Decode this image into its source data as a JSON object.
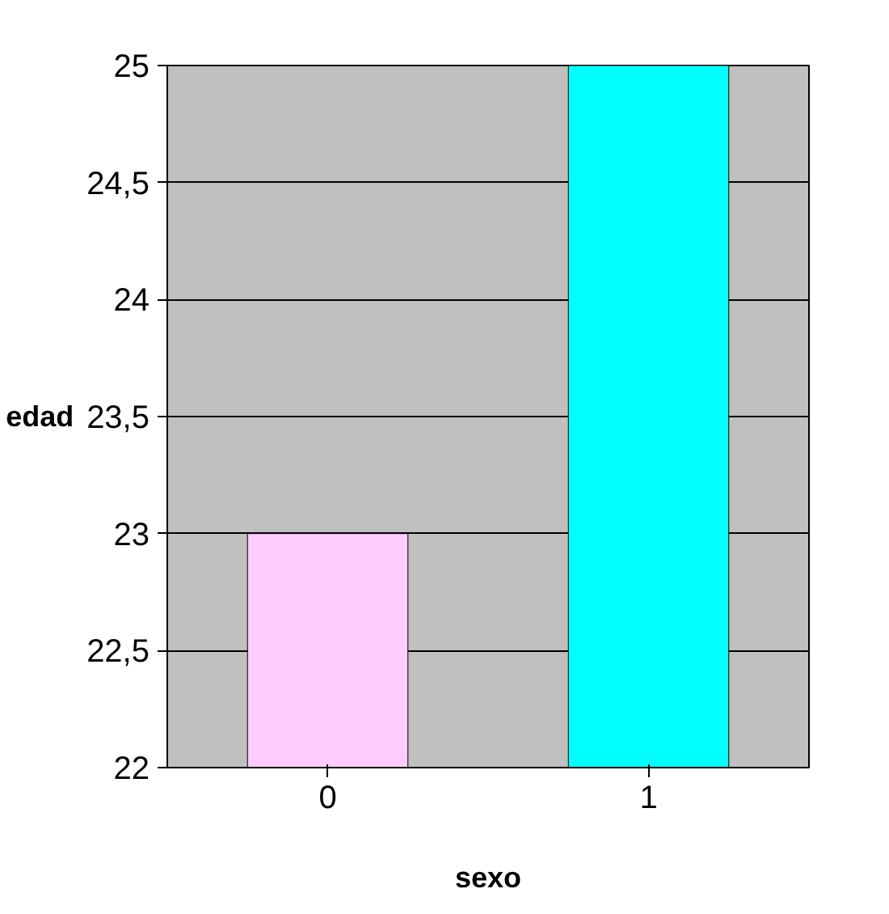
{
  "chart_data": {
    "type": "bar",
    "xlabel": "sexo",
    "ylabel": "edad",
    "categories": [
      "0",
      "1"
    ],
    "values": [
      23.0,
      25.0
    ],
    "colors": [
      "#ffccff",
      "#00ffff"
    ],
    "ylim": [
      22,
      25
    ],
    "yticks": [
      22,
      {
        "value": 22.5,
        "label": "22,5"
      },
      23,
      {
        "value": 23.5,
        "label": "23,5"
      },
      24,
      {
        "value": 24.5,
        "label": "24,5"
      },
      25
    ],
    "grid": "y"
  }
}
